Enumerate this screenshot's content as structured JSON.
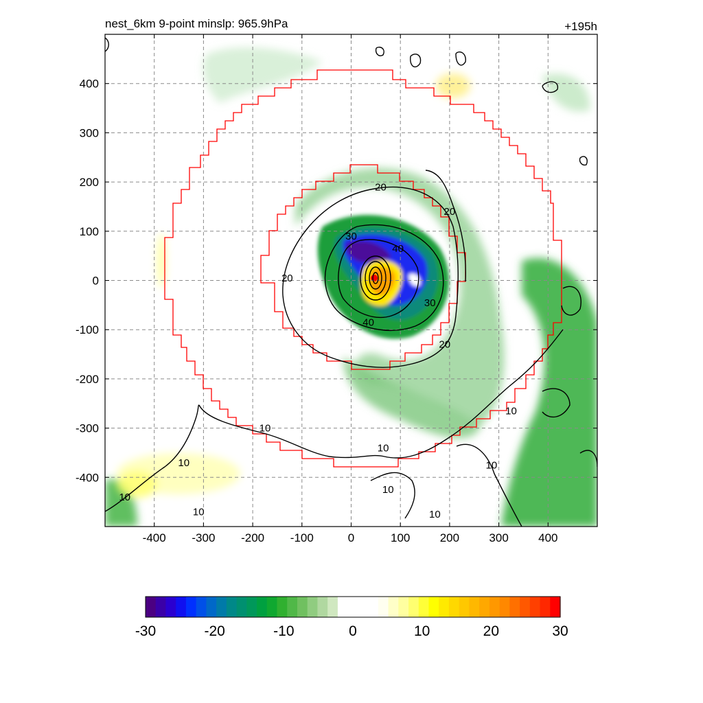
{
  "title_left": "nest_6km  9-point minslp: 965.9hPa",
  "title_right": "+195h",
  "chart_data": {
    "type": "heatmap",
    "xlim": [
      -500,
      500
    ],
    "ylim": [
      -500,
      500
    ],
    "x_ticks": [
      -400,
      -300,
      -200,
      -100,
      0,
      100,
      200,
      300,
      400
    ],
    "y_ticks": [
      400,
      300,
      200,
      100,
      0,
      -100,
      -200,
      -300,
      -400
    ],
    "x_tick_labels": [
      "-400",
      "-300",
      "-200",
      "-100",
      "0",
      "100",
      "200",
      "300",
      "400"
    ],
    "y_tick_labels": [
      "400",
      "300",
      "200",
      "100",
      "0",
      "-100",
      "-200",
      "-300",
      "-400"
    ],
    "grid": true,
    "min_slp_hpa": 965.9,
    "center": [
      45,
      5
    ],
    "colorbar": {
      "range": [
        -30,
        30
      ],
      "ticks": [
        -30,
        -20,
        -10,
        0,
        10,
        20,
        30
      ],
      "tick_labels": [
        "-30",
        "-20",
        "-10",
        "0",
        "10",
        "20",
        "30"
      ],
      "colors": [
        "#4b0082",
        "#3a00a8",
        "#2a00d0",
        "#1010f0",
        "#0030ff",
        "#0050e8",
        "#0068c8",
        "#007aa8",
        "#008888",
        "#009070",
        "#00985a",
        "#00a040",
        "#10a830",
        "#30b030",
        "#50b848",
        "#70c060",
        "#90cc80",
        "#b0d8a0",
        "#d0e8c0",
        "#ffffff",
        "#ffffff",
        "#ffffff",
        "#ffffff",
        "#fffff0",
        "#ffffc8",
        "#ffffa0",
        "#ffff70",
        "#ffff38",
        "#ffff00",
        "#ffea00",
        "#ffd800",
        "#ffc800",
        "#ffb800",
        "#ffa800",
        "#ff9800",
        "#ff8800",
        "#ff7000",
        "#ff5800",
        "#ff4000",
        "#ff2800",
        "#ff0000"
      ]
    },
    "contour_labels": [
      {
        "text": "20",
        "x": 60,
        "y": 190
      },
      {
        "text": "20",
        "x": 200,
        "y": 140
      },
      {
        "text": "30",
        "x": 0,
        "y": 90
      },
      {
        "text": "40",
        "x": 95,
        "y": 65
      },
      {
        "text": "20",
        "x": -130,
        "y": 5
      },
      {
        "text": "30",
        "x": 160,
        "y": -45
      },
      {
        "text": "40",
        "x": 35,
        "y": -85
      },
      {
        "text": "20",
        "x": 190,
        "y": -130
      },
      {
        "text": "10",
        "x": -175,
        "y": -300
      },
      {
        "text": "10",
        "x": 65,
        "y": -340
      },
      {
        "text": "10",
        "x": -340,
        "y": -370
      },
      {
        "text": "10",
        "x": 325,
        "y": -265
      },
      {
        "text": "10",
        "x": 285,
        "y": -375
      },
      {
        "text": "10",
        "x": 75,
        "y": -425
      },
      {
        "text": "10",
        "x": -460,
        "y": -440
      },
      {
        "text": "10",
        "x": -310,
        "y": -470
      },
      {
        "text": "10",
        "x": 170,
        "y": -475
      }
    ]
  }
}
